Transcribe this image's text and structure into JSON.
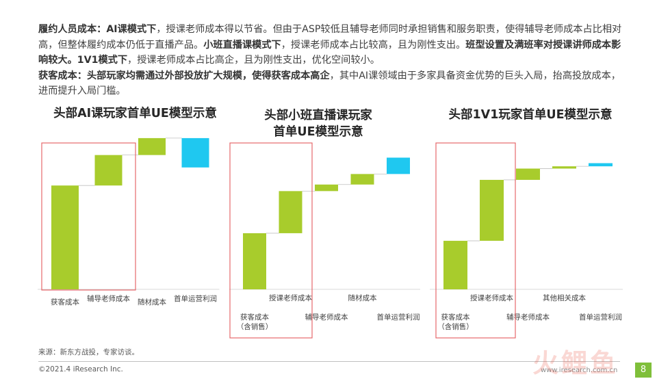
{
  "paragraph": {
    "l1_b1": "履约人员成本：",
    "l1_b2": "AI课模式下",
    "l1_t1": "，授课老师成本得以节省。但由于ASP较低且辅导老师同时承担销售和服务职责，使得辅导老师成本占比相对高，但整体履约成本仍低于直播产品。",
    "l1_b3": "小班直播课模式下",
    "l1_t2": "，授课老师成本占比较高，且为刚性支出。",
    "l1_b4": "班型设置及满班率对授课讲师成本影响较大。1V1模式下",
    "l1_t3": "，授课老师成本占比高企，且为刚性支出，优化空间较小。",
    "l2_b1": "获客成本：头部玩家均需通过外部投放扩大规模，使得获客成本高企",
    "l2_t1": "，其中AI课领域由于多家具备资金优势的巨头入局，抬高投放成本，进而提升入局门槛。"
  },
  "colors": {
    "green": "#a8cc2c",
    "blue": "#1fc8f0",
    "box": "#e5676b",
    "axis": "#d9d9d9"
  },
  "chart_data": [
    {
      "type": "bar",
      "title": "头部AI课玩家首单UE模型示意",
      "categories": [
        "获客成本",
        "辅导老师成本",
        "随材成本",
        "首单运营利润"
      ],
      "values": [
        46,
        13.5,
        7.5,
        -13
      ],
      "highlighted_category": "获客成本"
    },
    {
      "type": "bar",
      "title_lines": [
        "头部小班直播课玩家",
        "首单UE模型示意"
      ],
      "categories": [
        "获客成本（含销售）",
        "授课老师成本",
        "辅导老师成本",
        "随材成本",
        "首单运营利润"
      ],
      "values": [
        24,
        18,
        2.8,
        4.5,
        7
      ],
      "highlighted_category": "获客成本（含销售）"
    },
    {
      "type": "bar",
      "title": "头部1V1玩家首单UE模型示意",
      "categories": [
        "获客成本（含销售）",
        "授课老师成本",
        "辅导老师成本",
        "其他相关成本",
        "首单运营利润"
      ],
      "values": [
        21.5,
        27,
        5,
        1,
        1.4
      ],
      "highlighted_category": "获客成本（含销售）"
    }
  ],
  "source": "来源：新东方战投，专家访谈。",
  "footer": {
    "copyright": "©2021.4 iResearch Inc.",
    "website": "www.iresearch.com.cn",
    "page": "8"
  },
  "watermark": "火鲤鱼"
}
